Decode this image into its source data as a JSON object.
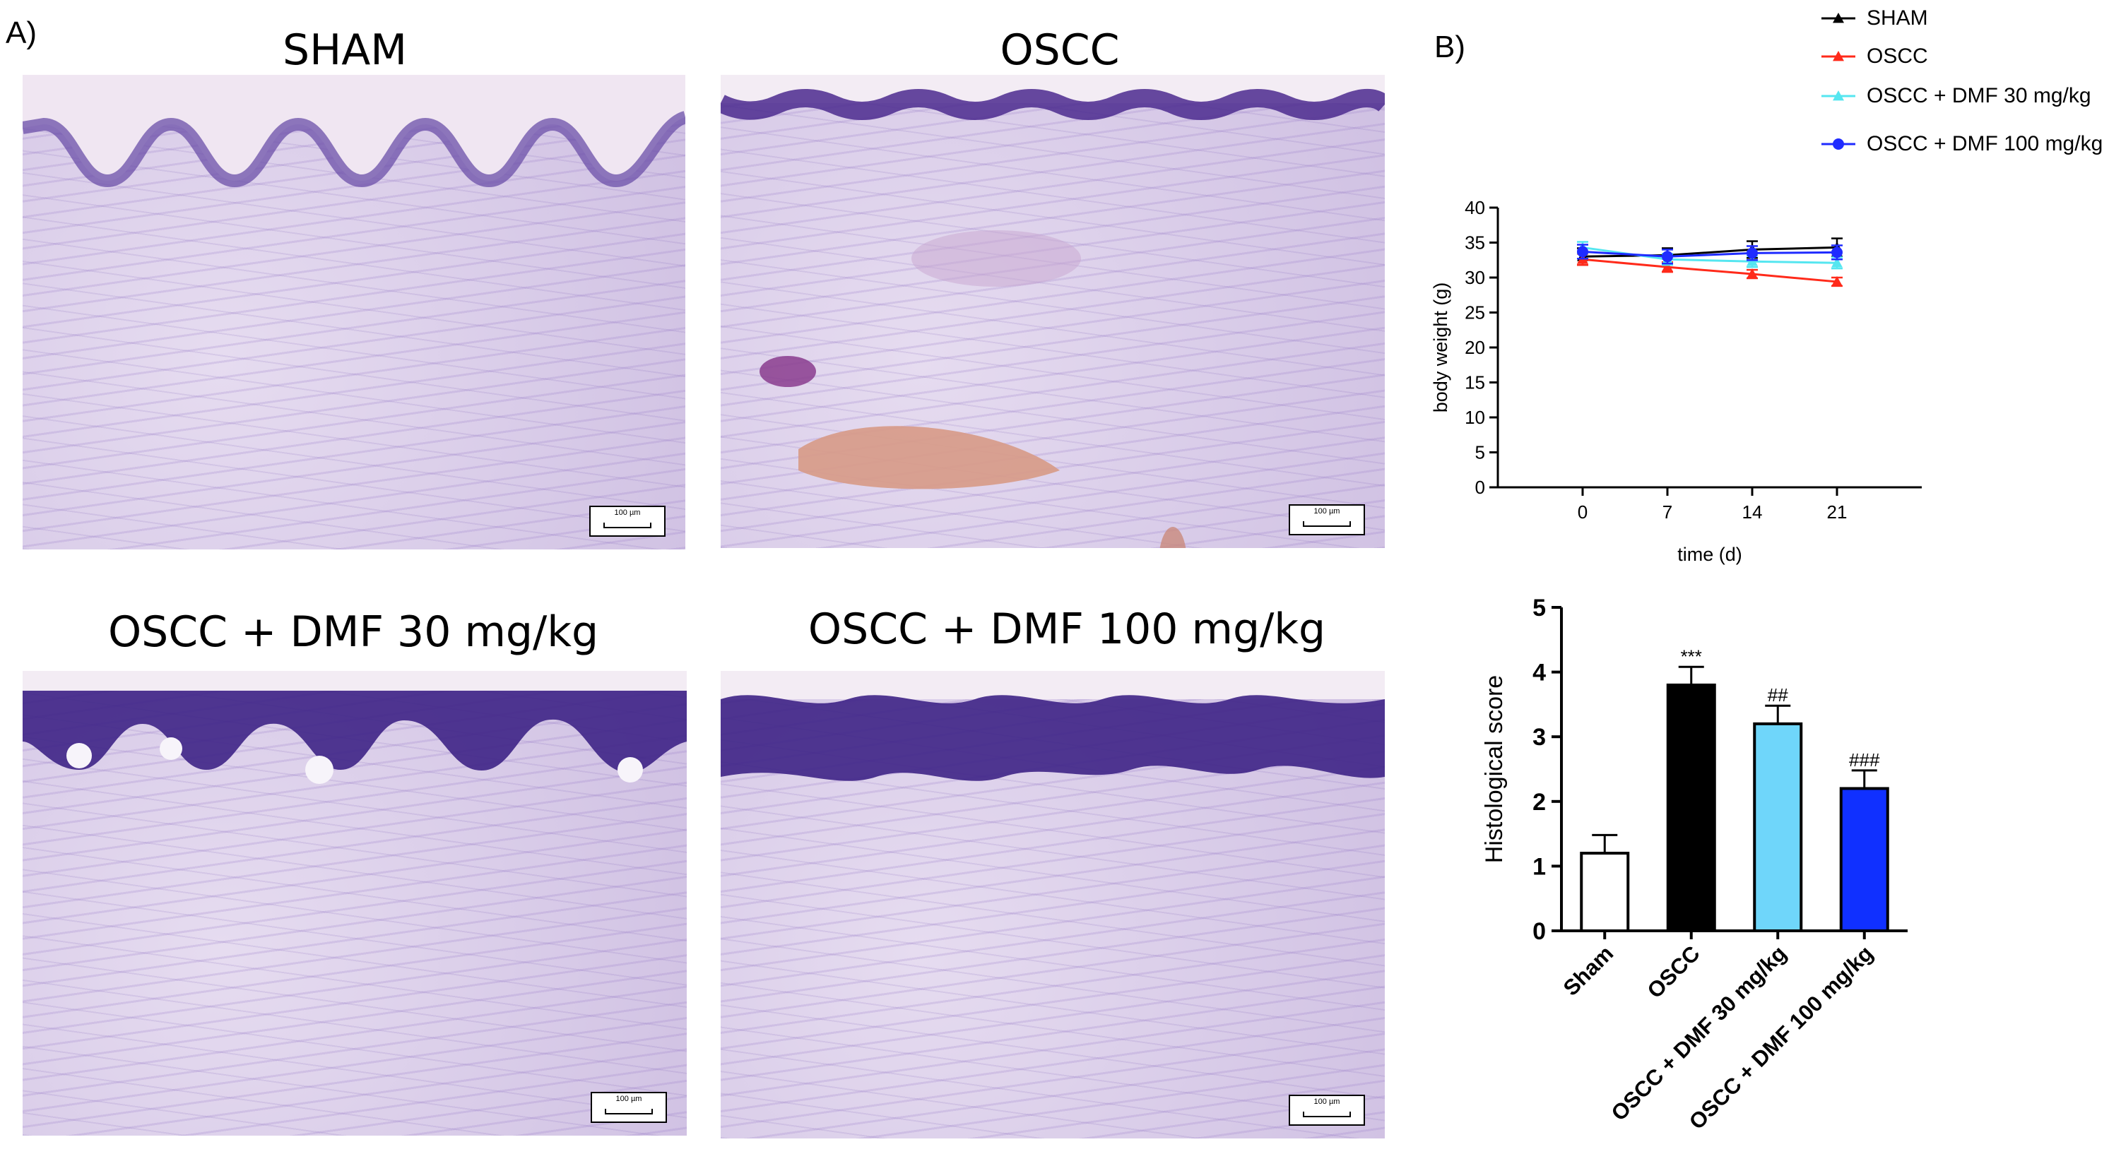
{
  "panels": {
    "a_label": "A)",
    "b_label": "B)"
  },
  "micrographs": [
    {
      "title": "SHAM",
      "scale_text": "100 µm"
    },
    {
      "title": "OSCC",
      "scale_text": "100 µm"
    },
    {
      "title": "OSCC + DMF 30 mg/kg",
      "scale_text": "100 µm"
    },
    {
      "title": "OSCC + DMF 100 mg/kg",
      "scale_text": "100 µm"
    }
  ],
  "colors": {
    "sham": "#000000",
    "oscc": "#ff2a1a",
    "dmf30": "#55e6f0",
    "dmf100": "#1f2bff",
    "bar_sham": "#ffffff",
    "bar_oscc": "#000000",
    "bar_dmf30": "#6fd6fa",
    "bar_dmf100": "#1030ff"
  },
  "legend": [
    {
      "label": "SHAM",
      "color": "#000000",
      "marker": "triangle"
    },
    {
      "label": "OSCC",
      "color": "#ff2a1a",
      "marker": "triangle"
    },
    {
      "label": "OSCC + DMF 30 mg/kg",
      "color": "#55e6f0",
      "marker": "triangle"
    },
    {
      "label": "OSCC + DMF 100 mg/kg",
      "color": "#1f2bff",
      "marker": "circle"
    }
  ],
  "chart_data": [
    {
      "type": "line",
      "xlabel": "time (d)",
      "ylabel": "body weight (g)",
      "x": [
        0,
        7,
        14,
        21
      ],
      "xlim": [
        -7,
        28
      ],
      "ylim": [
        0,
        40
      ],
      "xticks": [
        0,
        7,
        14,
        21
      ],
      "yticks": [
        0,
        5,
        10,
        15,
        20,
        25,
        30,
        35,
        40
      ],
      "series": [
        {
          "name": "SHAM",
          "values": [
            33.0,
            33.2,
            34.0,
            34.3
          ],
          "err": [
            1.2,
            1.0,
            1.2,
            1.3
          ]
        },
        {
          "name": "OSCC",
          "values": [
            32.6,
            31.5,
            30.5,
            29.4
          ],
          "err": [
            0.8,
            0.7,
            0.6,
            0.6
          ]
        },
        {
          "name": "OSCC + DMF 30 mg/kg",
          "values": [
            34.3,
            32.6,
            32.3,
            32.1
          ],
          "err": [
            0.8,
            0.8,
            0.8,
            0.8
          ]
        },
        {
          "name": "OSCC + DMF 100 mg/kg",
          "values": [
            33.7,
            33.0,
            33.5,
            33.6
          ],
          "err": [
            1.0,
            1.0,
            1.0,
            1.0
          ]
        }
      ],
      "legend_position": "top-right"
    },
    {
      "type": "bar",
      "ylabel": "Histological score",
      "categories": [
        "Sham",
        "OSCC",
        "OSCC + DMF 30 mg/kg",
        "OSCC + DMF 100 mg/kg"
      ],
      "values": [
        1.2,
        3.8,
        3.2,
        2.2
      ],
      "err": [
        0.28,
        0.28,
        0.28,
        0.28
      ],
      "annotations": [
        "",
        "***",
        "##",
        "###"
      ],
      "ylim": [
        0,
        5
      ],
      "yticks": [
        0,
        1,
        2,
        3,
        4,
        5
      ]
    }
  ]
}
